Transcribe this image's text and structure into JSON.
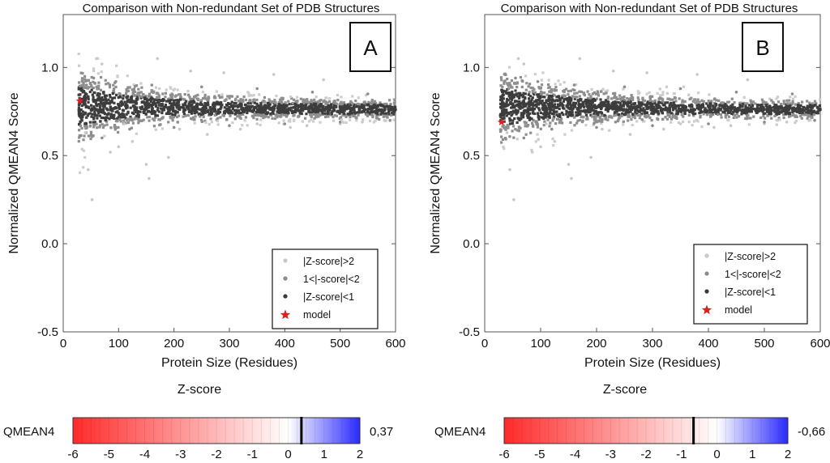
{
  "figure": {
    "panels": [
      {
        "panel_label": "A",
        "title": "Comparison with Non-redundant Set of PDB Structures",
        "xlabel": "Protein Size (Residues)",
        "ylabel": "Normalized QMEAN4 Score",
        "legend": [
          "|Z-score|>2",
          "1<|-score|<2",
          "|Z-score|<1",
          "model"
        ],
        "colorbar": {
          "title": "Z-score",
          "label": "QMEAN4",
          "value_text": "0,37"
        }
      },
      {
        "panel_label": "B",
        "title": "Comparison with Non-redundant Set of PDB Structures",
        "xlabel": "Protein Size (Residues)",
        "ylabel": "Normalized QMEAN4 Score",
        "legend": [
          "|Z-score|>2",
          "1<|-score|<2",
          "|Z-score|<1",
          "model"
        ],
        "colorbar": {
          "title": "Z-score",
          "label": "QMEAN4",
          "value_text": "-0,66"
        }
      }
    ]
  },
  "chart_data": [
    {
      "type": "scatter",
      "title": "Comparison with Non-redundant Set of PDB Structures",
      "panel_label": "A",
      "xlabel": "Protein Size (Residues)",
      "ylabel": "Normalized QMEAN4 Score",
      "xlim": [
        0,
        600
      ],
      "ylim": [
        -0.5,
        1.3
      ],
      "xticks": [
        0,
        100,
        200,
        300,
        400,
        500,
        600
      ],
      "yticks": [
        -0.5,
        0.0,
        0.5,
        1.0
      ],
      "ytick_labels": [
        "-0.5",
        "0.0",
        "0.5",
        "1.0"
      ],
      "legend_position": "bottom-right",
      "series": [
        {
          "name": "|Z-score|>2",
          "color": "#c8c8c8",
          "points": [
            [
              40,
              0.63
            ],
            [
              45,
              0.42
            ],
            [
              52,
              0.25
            ],
            [
              60,
              1.05
            ],
            [
              70,
              1.02
            ],
            [
              85,
              0.52
            ],
            [
              100,
              0.55
            ],
            [
              110,
              0.68
            ],
            [
              125,
              0.58
            ],
            [
              150,
              0.45
            ],
            [
              155,
              0.37
            ],
            [
              170,
              1.05
            ],
            [
              190,
              0.49
            ],
            [
              210,
              0.65
            ],
            [
              230,
              0.98
            ],
            [
              260,
              0.62
            ],
            [
              290,
              0.97
            ],
            [
              320,
              0.65
            ],
            [
              350,
              0.68
            ],
            [
              380,
              0.96
            ],
            [
              410,
              0.66
            ],
            [
              440,
              0.67
            ],
            [
              470,
              0.93
            ],
            [
              500,
              0.68
            ],
            [
              540,
              0.69
            ],
            [
              580,
              0.7
            ]
          ]
        },
        {
          "name": "1<|-score|<2",
          "color": "#8c8c8c",
          "points": [
            [
              35,
              0.92
            ],
            [
              42,
              0.9
            ],
            [
              55,
              0.94
            ],
            [
              70,
              0.6
            ],
            [
              95,
              0.92
            ],
            [
              120,
              0.65
            ],
            [
              160,
              0.9
            ],
            [
              200,
              0.66
            ],
            [
              250,
              0.89
            ],
            [
              300,
              0.67
            ],
            [
              350,
              0.88
            ],
            [
              400,
              0.68
            ],
            [
              450,
              0.86
            ],
            [
              500,
              0.69
            ],
            [
              550,
              0.85
            ],
            [
              590,
              0.7
            ]
          ]
        },
        {
          "name": "|Z-score|<1",
          "color": "#3a3a3a",
          "points": [
            [
              30,
              0.73
            ],
            [
              40,
              0.82
            ],
            [
              60,
              0.79
            ],
            [
              80,
              0.76
            ],
            [
              100,
              0.83
            ],
            [
              140,
              0.77
            ],
            [
              180,
              0.81
            ],
            [
              220,
              0.76
            ],
            [
              280,
              0.8
            ],
            [
              330,
              0.77
            ],
            [
              390,
              0.79
            ],
            [
              450,
              0.76
            ],
            [
              510,
              0.78
            ],
            [
              560,
              0.77
            ],
            [
              600,
              0.76
            ]
          ]
        },
        {
          "name": "model",
          "color": "#e02020",
          "points": [
            [
              30,
              0.81
            ]
          ]
        }
      ]
    },
    {
      "type": "scatter",
      "title": "Comparison with Non-redundant Set of PDB Structures",
      "panel_label": "B",
      "xlabel": "Protein Size (Residues)",
      "ylabel": "Normalized QMEAN4 Score",
      "xlim": [
        0,
        600
      ],
      "ylim": [
        -0.5,
        1.3
      ],
      "xticks": [
        0,
        100,
        200,
        300,
        400,
        500,
        600
      ],
      "yticks": [
        -0.5,
        0.0,
        0.5,
        1.0
      ],
      "ytick_labels": [
        "-0.5",
        "0.0",
        "0.5",
        "1.0"
      ],
      "legend_position": "bottom-right",
      "series": [
        {
          "name": "|Z-score|>2",
          "color": "#c8c8c8",
          "points": [
            [
              40,
              0.63
            ],
            [
              45,
              0.42
            ],
            [
              52,
              0.25
            ],
            [
              60,
              1.05
            ],
            [
              70,
              1.02
            ],
            [
              85,
              0.52
            ],
            [
              100,
              0.55
            ],
            [
              110,
              0.68
            ],
            [
              125,
              0.58
            ],
            [
              150,
              0.45
            ],
            [
              155,
              0.37
            ],
            [
              170,
              1.05
            ],
            [
              190,
              0.49
            ],
            [
              210,
              0.65
            ],
            [
              230,
              0.98
            ],
            [
              260,
              0.62
            ],
            [
              290,
              0.97
            ],
            [
              320,
              0.65
            ],
            [
              350,
              0.68
            ],
            [
              380,
              0.96
            ],
            [
              410,
              0.66
            ],
            [
              440,
              0.67
            ],
            [
              470,
              0.93
            ],
            [
              500,
              0.68
            ],
            [
              540,
              0.69
            ],
            [
              580,
              0.7
            ]
          ]
        },
        {
          "name": "1<|-score|<2",
          "color": "#8c8c8c",
          "points": [
            [
              35,
              0.92
            ],
            [
              42,
              0.9
            ],
            [
              55,
              0.94
            ],
            [
              70,
              0.6
            ],
            [
              95,
              0.92
            ],
            [
              120,
              0.65
            ],
            [
              160,
              0.9
            ],
            [
              200,
              0.66
            ],
            [
              250,
              0.89
            ],
            [
              300,
              0.67
            ],
            [
              350,
              0.88
            ],
            [
              400,
              0.68
            ],
            [
              450,
              0.86
            ],
            [
              500,
              0.69
            ],
            [
              550,
              0.85
            ],
            [
              590,
              0.7
            ]
          ]
        },
        {
          "name": "|Z-score|<1",
          "color": "#3a3a3a",
          "points": [
            [
              30,
              0.73
            ],
            [
              40,
              0.82
            ],
            [
              60,
              0.79
            ],
            [
              80,
              0.76
            ],
            [
              100,
              0.83
            ],
            [
              140,
              0.77
            ],
            [
              180,
              0.81
            ],
            [
              220,
              0.76
            ],
            [
              280,
              0.8
            ],
            [
              330,
              0.77
            ],
            [
              390,
              0.79
            ],
            [
              450,
              0.76
            ],
            [
              510,
              0.78
            ],
            [
              560,
              0.77
            ],
            [
              600,
              0.76
            ]
          ]
        },
        {
          "name": "model",
          "color": "#e02020",
          "points": [
            [
              30,
              0.69
            ]
          ]
        }
      ]
    },
    {
      "type": "heatmap",
      "panel_label": "A",
      "title": "Z-score",
      "label": "QMEAN4",
      "value": 0.37,
      "value_text": "0,37",
      "range": [
        -6,
        2
      ],
      "ticks": [
        -6,
        -5,
        -4,
        -3,
        -2,
        -1,
        0,
        1,
        2
      ],
      "colors": {
        "low": "#ff2a2a",
        "mid": "#ffffff",
        "high": "#2a2aff"
      }
    },
    {
      "type": "heatmap",
      "panel_label": "B",
      "title": "Z-score",
      "label": "QMEAN4",
      "value": -0.66,
      "value_text": "-0,66",
      "range": [
        -6,
        2
      ],
      "ticks": [
        -6,
        -5,
        -4,
        -3,
        -2,
        -1,
        0,
        1,
        2
      ],
      "colors": {
        "low": "#ff2a2a",
        "mid": "#ffffff",
        "high": "#2a2aff"
      }
    }
  ]
}
